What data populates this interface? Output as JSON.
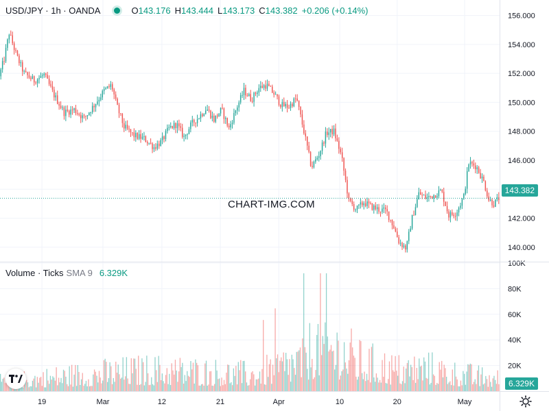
{
  "header": {
    "symbol": "USD/JPY · 1h · OANDA",
    "open_label": "O",
    "open": "143.176",
    "high_label": "H",
    "high": "143.444",
    "low_label": "L",
    "low": "143.173",
    "close_label": "C",
    "close": "143.382",
    "change": "+0.206 (+0.14%)"
  },
  "volume_legend": {
    "title": "Volume · Ticks",
    "sma_label": "SMA 9",
    "value": "6.329K"
  },
  "watermark": "CHART-IMG.COM",
  "badges": {
    "price": "143.382",
    "volume": "6.329K"
  },
  "colors": {
    "up": "#26a69a",
    "down": "#ef5350",
    "grid": "#f0f3fa",
    "text": "#131722",
    "last_line": "#26a69a"
  },
  "chart_data": [
    {
      "type": "candlestick",
      "title": "USD/JPY · 1h · OANDA",
      "ylim": [
        139,
        156.5
      ],
      "y_ticks": [
        "140.000",
        "142.000",
        "144.000",
        "146.000",
        "148.000",
        "150.000",
        "152.000",
        "154.000",
        "156.000"
      ],
      "y_tick_values": [
        140,
        142,
        144,
        146,
        148,
        150,
        152,
        154,
        156
      ],
      "x_ticks": [
        "19",
        "Mar",
        "12",
        "21",
        "Apr",
        "10",
        "20",
        "May"
      ],
      "x_tick_positions": [
        0.084,
        0.206,
        0.324,
        0.441,
        0.558,
        0.68,
        0.795,
        0.93
      ],
      "last_price": 143.382,
      "price_path": [
        [
          0.0,
          151.8
        ],
        [
          0.01,
          153.0
        ],
        [
          0.02,
          154.8
        ],
        [
          0.035,
          153.2
        ],
        [
          0.05,
          152.0
        ],
        [
          0.07,
          151.5
        ],
        [
          0.09,
          151.9
        ],
        [
          0.11,
          150.5
        ],
        [
          0.13,
          149.3
        ],
        [
          0.15,
          149.5
        ],
        [
          0.17,
          148.9
        ],
        [
          0.19,
          149.8
        ],
        [
          0.21,
          150.8
        ],
        [
          0.225,
          151.2
        ],
        [
          0.235,
          149.8
        ],
        [
          0.25,
          148.3
        ],
        [
          0.27,
          147.7
        ],
        [
          0.29,
          147.5
        ],
        [
          0.31,
          146.9
        ],
        [
          0.325,
          147.3
        ],
        [
          0.34,
          148.2
        ],
        [
          0.355,
          148.5
        ],
        [
          0.37,
          147.6
        ],
        [
          0.385,
          148.5
        ],
        [
          0.4,
          149.0
        ],
        [
          0.415,
          149.6
        ],
        [
          0.43,
          148.8
        ],
        [
          0.445,
          149.5
        ],
        [
          0.46,
          148.2
        ],
        [
          0.475,
          149.6
        ],
        [
          0.49,
          150.8
        ],
        [
          0.505,
          150.2
        ],
        [
          0.52,
          151.0
        ],
        [
          0.535,
          151.2
        ],
        [
          0.55,
          150.6
        ],
        [
          0.565,
          149.8
        ],
        [
          0.58,
          149.7
        ],
        [
          0.595,
          150.3
        ],
        [
          0.61,
          148.0
        ],
        [
          0.625,
          145.5
        ],
        [
          0.64,
          146.4
        ],
        [
          0.655,
          147.9
        ],
        [
          0.67,
          148.0
        ],
        [
          0.685,
          146.3
        ],
        [
          0.7,
          143.2
        ],
        [
          0.715,
          142.6
        ],
        [
          0.73,
          143.1
        ],
        [
          0.745,
          142.8
        ],
        [
          0.76,
          142.6
        ],
        [
          0.775,
          142.5
        ],
        [
          0.79,
          141.4
        ],
        [
          0.8,
          140.4
        ],
        [
          0.815,
          139.9
        ],
        [
          0.825,
          141.8
        ],
        [
          0.84,
          143.7
        ],
        [
          0.855,
          143.4
        ],
        [
          0.87,
          143.6
        ],
        [
          0.885,
          143.9
        ],
        [
          0.9,
          142.2
        ],
        [
          0.915,
          142.4
        ],
        [
          0.93,
          143.5
        ],
        [
          0.94,
          145.8
        ],
        [
          0.955,
          145.6
        ],
        [
          0.97,
          144.5
        ],
        [
          0.98,
          143.3
        ],
        [
          0.99,
          143.0
        ],
        [
          1.0,
          143.38
        ]
      ]
    },
    {
      "type": "bar",
      "title": "Volume · Ticks",
      "ylim": [
        0,
        100000
      ],
      "y_ticks": [
        "20K",
        "40K",
        "60K",
        "80K",
        "100K"
      ],
      "y_tick_values": [
        20000,
        40000,
        60000,
        80000,
        100000
      ],
      "last_value": 6329,
      "volume_envelope": [
        [
          0.0,
          14000
        ],
        [
          0.1,
          20000
        ],
        [
          0.2,
          26000
        ],
        [
          0.3,
          30000
        ],
        [
          0.4,
          28000
        ],
        [
          0.5,
          24000
        ],
        [
          0.6,
          44000
        ],
        [
          0.64,
          72000
        ],
        [
          0.68,
          60000
        ],
        [
          0.72,
          42000
        ],
        [
          0.8,
          30000
        ],
        [
          0.85,
          34000
        ],
        [
          0.9,
          26000
        ],
        [
          1.0,
          17000
        ]
      ]
    }
  ]
}
